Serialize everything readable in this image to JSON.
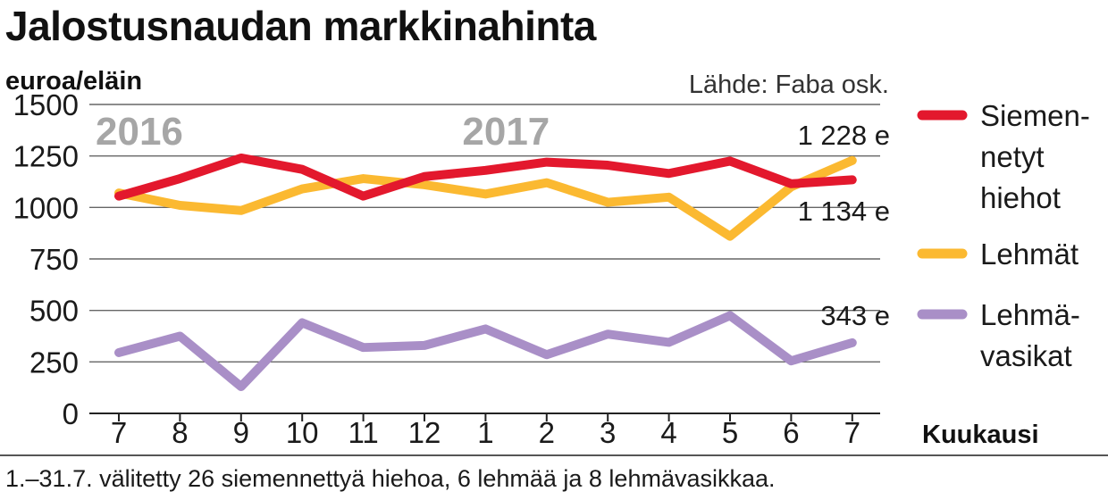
{
  "header": {
    "title": "Jalostusnaudan markkinahinta",
    "footnote": "1.–31.7. välitetty 26 siemennettyä hiehoa, 6 lehmää ja 8 lehmävasikkaa."
  },
  "chart_data": {
    "type": "line",
    "title": "Jalostusnaudan markkinahinta",
    "ylabel": "euroa/eläin",
    "xlabel": "Kuukausi",
    "source": "Lähde: Faba osk.",
    "ylim": [
      0,
      1500
    ],
    "yticks": [
      "1500",
      "1250",
      "1000",
      "750",
      "500",
      "250",
      "0"
    ],
    "ytick_values": [
      1500,
      1250,
      1000,
      750,
      500,
      250,
      0
    ],
    "categories": [
      "7",
      "8",
      "9",
      "10",
      "11",
      "12",
      "1",
      "2",
      "3",
      "4",
      "5",
      "6",
      "7"
    ],
    "year_labels": [
      {
        "text": "2016",
        "category_index": 0
      },
      {
        "text": "2017",
        "category_index": 6
      }
    ],
    "series": [
      {
        "name": "Siemennetyt hiehot",
        "legend_lines": [
          "Siemen-",
          "netyt",
          "hiehot"
        ],
        "color": "#e3182d",
        "values": [
          1055,
          1140,
          1240,
          1185,
          1055,
          1150,
          1180,
          1220,
          1205,
          1165,
          1225,
          1115,
          1134
        ],
        "end_label": "1 134 e"
      },
      {
        "name": "Lehmät",
        "legend_lines": [
          "Lehmät"
        ],
        "color": "#fbb931",
        "values": [
          1070,
          1010,
          985,
          1090,
          1140,
          1110,
          1065,
          1120,
          1025,
          1050,
          860,
          1100,
          1228
        ],
        "end_label": "1 228 e"
      },
      {
        "name": "Lehmävasikat",
        "legend_lines": [
          "Lehmä-",
          "vasikat"
        ],
        "color": "#a98fc7",
        "values": [
          295,
          375,
          130,
          440,
          320,
          330,
          410,
          285,
          385,
          345,
          475,
          255,
          343
        ],
        "end_label": "343 e"
      }
    ]
  }
}
